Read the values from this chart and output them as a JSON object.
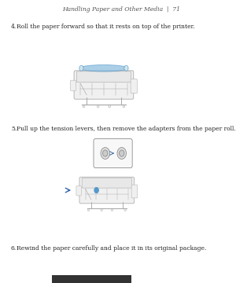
{
  "page_bg": "#ffffff",
  "header_text": "Handling Paper and Other Media  |  71",
  "header_fontsize": 5.5,
  "header_color": "#555555",
  "header_italic": true,
  "step4_label": "4.",
  "step4_text": "Roll the paper forward so that it rests on top of the printer.",
  "step5_label": "5.",
  "step5_text": "Pull up the tension levers, then remove the adapters from the paper roll.",
  "step6_label": "6.",
  "step6_text": "Rewind the paper carefully and place it in its original package.",
  "text_fontsize": 5.5,
  "text_color": "#222222",
  "printer_line_color": "#aaaaaa",
  "printer_fill_color": "#f0f0f0",
  "blue_color": "#5599cc",
  "highlight_blue": "#88bbdd",
  "arrow_color": "#3366aa",
  "footnote_bar": "#333333"
}
